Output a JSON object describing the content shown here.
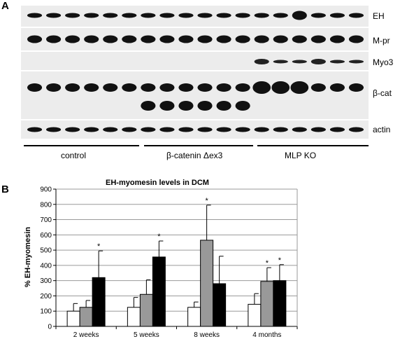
{
  "panel_a": {
    "letter": "A",
    "row_labels": [
      "EH",
      "M-pr",
      "Myo3",
      "β-cat",
      "actin"
    ],
    "group_labels": [
      "control",
      "β-catenin Δex3",
      "MLP KO"
    ]
  },
  "panel_b": {
    "letter": "B"
  },
  "chart_data": {
    "type": "bar",
    "title": "EH-myomesin levels in DCM",
    "ylabel": "% EH-myomesin",
    "xlabel": "",
    "ylim": [
      0,
      900
    ],
    "yticks": [
      0,
      100,
      200,
      300,
      400,
      500,
      600,
      700,
      800,
      900
    ],
    "grid": true,
    "categories": [
      "2 weeks",
      "5 weeks",
      "8 weeks",
      "4 months"
    ],
    "series": [
      {
        "color": "#ffffff",
        "values": [
          100,
          125,
          125,
          145
        ],
        "errors": [
          50,
          65,
          35,
          70
        ],
        "significant": [
          false,
          false,
          false,
          false
        ]
      },
      {
        "color": "#999999",
        "values": [
          125,
          210,
          565,
          295
        ],
        "errors": [
          45,
          95,
          230,
          90
        ],
        "significant": [
          false,
          false,
          true,
          true
        ]
      },
      {
        "color": "#000000",
        "values": [
          320,
          455,
          280,
          300
        ],
        "errors": [
          175,
          105,
          180,
          105
        ],
        "significant": [
          true,
          true,
          false,
          true
        ]
      }
    ],
    "significance_marker": "*"
  }
}
